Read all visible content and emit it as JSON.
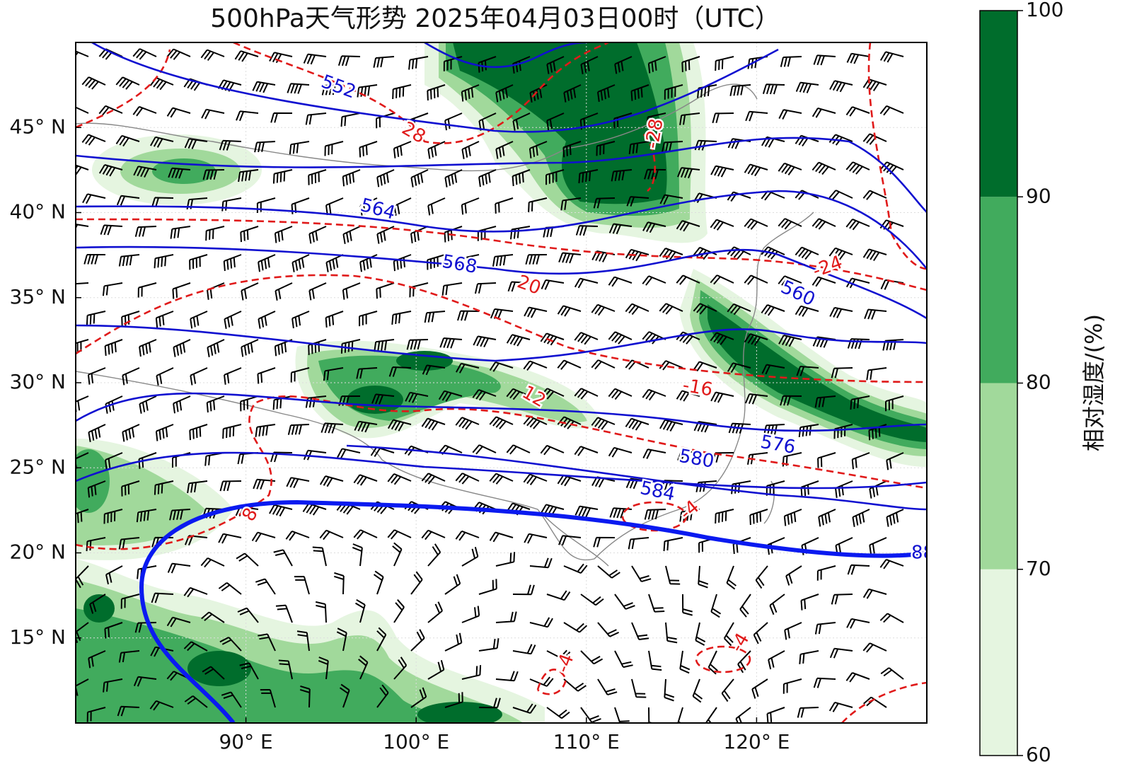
{
  "title": "500hPa天气形势 2025年04月03日00时（UTC）",
  "map": {
    "xlim": [
      80,
      130
    ],
    "ylim": [
      10,
      50
    ],
    "xticks": [
      {
        "value": 90,
        "label": "90° E"
      },
      {
        "value": 100,
        "label": "100° E"
      },
      {
        "value": 110,
        "label": "110° E"
      },
      {
        "value": 120,
        "label": "120° E"
      }
    ],
    "yticks": [
      {
        "value": 15,
        "label": "15° N"
      },
      {
        "value": 20,
        "label": "20° N"
      },
      {
        "value": 25,
        "label": "25° N"
      },
      {
        "value": 30,
        "label": "30° N"
      },
      {
        "value": 35,
        "label": "35° N"
      },
      {
        "value": 40,
        "label": "40° N"
      },
      {
        "value": 45,
        "label": "45° N"
      }
    ]
  },
  "height_contour_labels": [
    "552",
    "564",
    "568",
    "560",
    "576",
    "580",
    "584",
    "88"
  ],
  "temperature_contour_labels": [
    "28",
    "-28",
    "-24",
    "20",
    "-16",
    "12",
    "8",
    "-4",
    "-4",
    "-4"
  ],
  "colorbar": {
    "label": "相对湿度/(%)",
    "ticks": [
      60,
      70,
      80,
      90,
      100
    ],
    "colors": [
      "#e5f5e0",
      "#a1d99b",
      "#41ab5d",
      "#006d2c"
    ]
  }
}
